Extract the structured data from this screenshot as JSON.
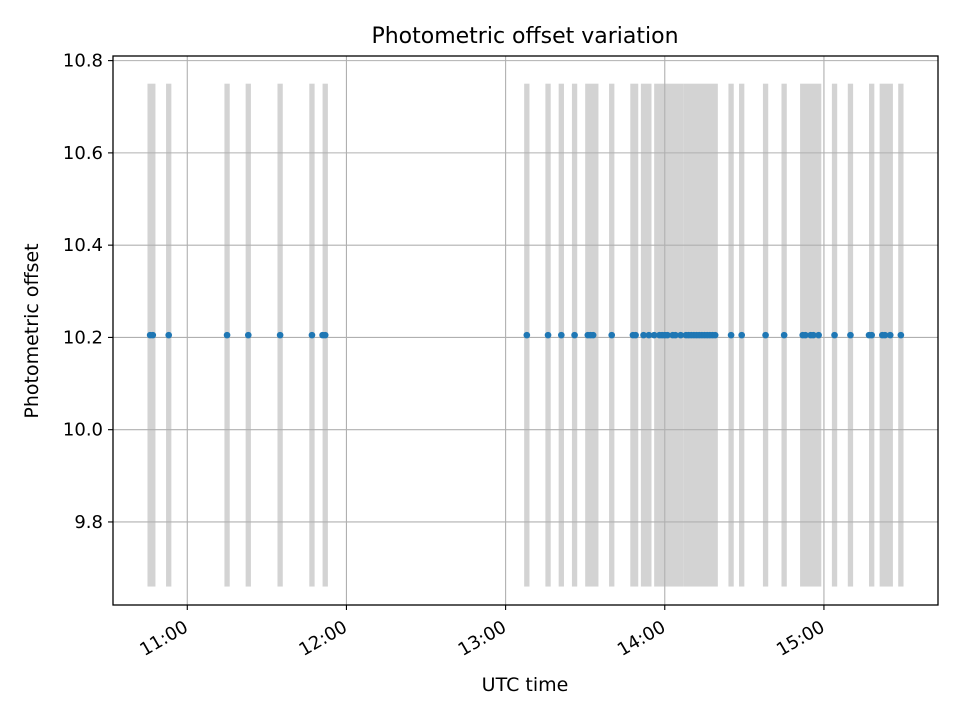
{
  "chart_data": {
    "type": "scatter",
    "title": "Photometric offset variation",
    "xlabel": "UTC time",
    "ylabel": "Photometric offset",
    "x_axis": {
      "type": "time",
      "range": [
        "10:32",
        "15:43"
      ],
      "ticks": [
        "11:00",
        "12:00",
        "13:00",
        "14:00",
        "15:00"
      ]
    },
    "ylim": [
      9.62,
      10.81
    ],
    "y_ticks": [
      "9.8",
      "10.0",
      "10.2",
      "10.4",
      "10.6",
      "10.8"
    ],
    "grid": true,
    "colors": {
      "points": "#1f77b4",
      "bands": "#d3d3d3",
      "grid": "#b0b0b0"
    },
    "bands_y": [
      9.66,
      10.75
    ],
    "bands": [
      [
        "10:45",
        "10:48"
      ],
      [
        "10:52",
        "10:54"
      ],
      [
        "11:14",
        "11:16"
      ],
      [
        "11:22",
        "11:24"
      ],
      [
        "11:34",
        "11:36"
      ],
      [
        "11:46",
        "11:48"
      ],
      [
        "11:51",
        "11:53"
      ],
      [
        "13:07",
        "13:09"
      ],
      [
        "13:15",
        "13:17"
      ],
      [
        "13:20",
        "13:22"
      ],
      [
        "13:25",
        "13:27"
      ],
      [
        "13:30",
        "13:35"
      ],
      [
        "13:39",
        "13:41"
      ],
      [
        "13:47",
        "13:50"
      ],
      [
        "13:51",
        "13:55"
      ],
      [
        "13:56",
        "14:07"
      ],
      [
        "14:07",
        "14:20"
      ],
      [
        "14:24",
        "14:26"
      ],
      [
        "14:28",
        "14:30"
      ],
      [
        "14:37",
        "14:39"
      ],
      [
        "14:44",
        "14:46"
      ],
      [
        "14:51",
        "14:59"
      ],
      [
        "15:03",
        "15:05"
      ],
      [
        "15:09",
        "15:11"
      ],
      [
        "15:17",
        "15:19"
      ],
      [
        "15:21",
        "15:26"
      ],
      [
        "15:28",
        "15:30"
      ]
    ],
    "series": [
      {
        "y": 10.205,
        "x": [
          "10:46",
          "10:47",
          "10:53",
          "11:15",
          "11:23",
          "11:35",
          "11:47",
          "11:51",
          "11:52",
          "13:08",
          "13:16",
          "13:21",
          "13:26",
          "13:31",
          "13:32",
          "13:33",
          "13:40",
          "13:48",
          "13:49",
          "13:52",
          "13:54",
          "13:56",
          "13:58",
          "13:59",
          "14:00",
          "14:01",
          "14:03",
          "14:04",
          "14:06",
          "14:08",
          "14:09",
          "14:10",
          "14:11",
          "14:12",
          "14:13",
          "14:14",
          "14:15",
          "14:16",
          "14:17",
          "14:18",
          "14:19",
          "14:25",
          "14:29",
          "14:38",
          "14:45",
          "14:52",
          "14:53",
          "14:55",
          "14:56",
          "14:58",
          "15:04",
          "15:10",
          "15:17",
          "15:18",
          "15:22",
          "15:23",
          "15:25",
          "15:29"
        ]
      }
    ]
  }
}
